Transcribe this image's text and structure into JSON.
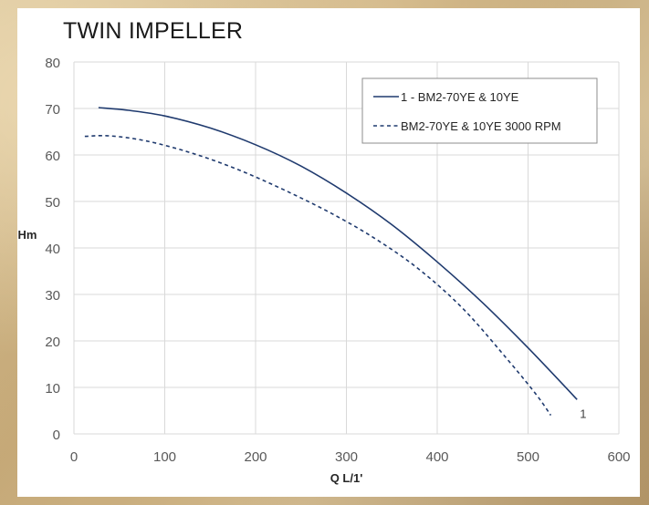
{
  "chart_data": {
    "type": "line",
    "title": "TWIN IMPELLER",
    "xlabel": "Q L/1'",
    "ylabel": "Hm",
    "xlim": [
      0,
      600
    ],
    "ylim": [
      0,
      80
    ],
    "xticks": [
      0,
      100,
      200,
      300,
      400,
      500,
      600
    ],
    "yticks": [
      0,
      10,
      20,
      30,
      40,
      50,
      60,
      70,
      80
    ],
    "grid": true,
    "legend_position": "top-right",
    "series": [
      {
        "name": "1 - BM2-70YE & 10YE",
        "style": "solid",
        "end_label": "1",
        "x": [
          27,
          60,
          100,
          150,
          200,
          250,
          300,
          350,
          400,
          450,
          500,
          554
        ],
        "y": [
          70.2,
          69.6,
          68.4,
          65.8,
          62.2,
          57.6,
          51.8,
          45.0,
          37.0,
          28.2,
          18.5,
          7.4
        ]
      },
      {
        "name": "BM2-70YE & 10YE 3000 RPM",
        "style": "dashed",
        "x": [
          12,
          40,
          80,
          130,
          180,
          230,
          280,
          330,
          380,
          430,
          480,
          510,
          525
        ],
        "y": [
          64.0,
          64.1,
          63.0,
          60.4,
          56.9,
          52.6,
          47.8,
          42.2,
          35.4,
          26.6,
          15.4,
          8.2,
          4.0
        ]
      }
    ]
  },
  "colors": {
    "line": "#1f3a6e",
    "grid": "#d9d9d9",
    "tick_text": "#595959",
    "axis_title": "#262626"
  }
}
